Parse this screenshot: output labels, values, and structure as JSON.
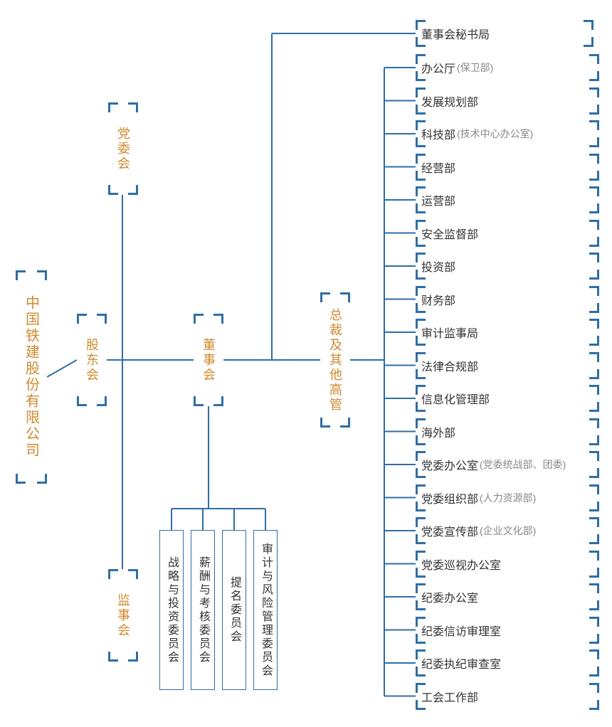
{
  "diagram": {
    "type": "org-chart",
    "background_color": "#ffffff",
    "line_color": "#2f6ea5",
    "line_width": 2,
    "primary_text_color": "#d08a2f",
    "leaf_text_color": "#333333",
    "subtext_color": "#888888",
    "corner_bracket_color": "#2f6ea5",
    "fontsize_main": 18,
    "fontsize_leaf": 16,
    "fontsize_sub": 14
  },
  "root": {
    "label": "中国铁建股份有限公司"
  },
  "level1": {
    "dangwei": {
      "label": "党委会"
    },
    "gudong": {
      "label": "股东会"
    },
    "jianshi": {
      "label": "监事会"
    }
  },
  "dongshi": {
    "label": "董事会"
  },
  "dongshi_children": [
    {
      "label": "战略与投资委员会"
    },
    {
      "label": "薪酬与考核委员会"
    },
    {
      "label": "提名委员会"
    },
    {
      "label": "审计与风险管理委员会"
    }
  ],
  "dongshi_top_leaf": {
    "label": "董事会秘书局"
  },
  "zongcai": {
    "label": "总裁及其他高管"
  },
  "departments": [
    {
      "label": "办公厅",
      "sub": "(保卫部)"
    },
    {
      "label": "发展规划部",
      "sub": ""
    },
    {
      "label": "科技部",
      "sub": "(技术中心办公室)"
    },
    {
      "label": "经营部",
      "sub": ""
    },
    {
      "label": "运营部",
      "sub": ""
    },
    {
      "label": "安全监督部",
      "sub": ""
    },
    {
      "label": "投资部",
      "sub": ""
    },
    {
      "label": "财务部",
      "sub": ""
    },
    {
      "label": "审计监事局",
      "sub": ""
    },
    {
      "label": "法律合规部",
      "sub": ""
    },
    {
      "label": "信息化管理部",
      "sub": ""
    },
    {
      "label": "海外部",
      "sub": ""
    },
    {
      "label": "党委办公室",
      "sub": "(党委统战部、团委)"
    },
    {
      "label": "党委组织部",
      "sub": "(人力资源部)"
    },
    {
      "label": "党委宣传部",
      "sub": "(企业文化部)"
    },
    {
      "label": "党委巡视办公室",
      "sub": ""
    },
    {
      "label": "纪委办公室",
      "sub": ""
    },
    {
      "label": "纪委信访审理室",
      "sub": ""
    },
    {
      "label": "纪委执纪审查室",
      "sub": ""
    },
    {
      "label": "工会工作部",
      "sub": ""
    }
  ]
}
